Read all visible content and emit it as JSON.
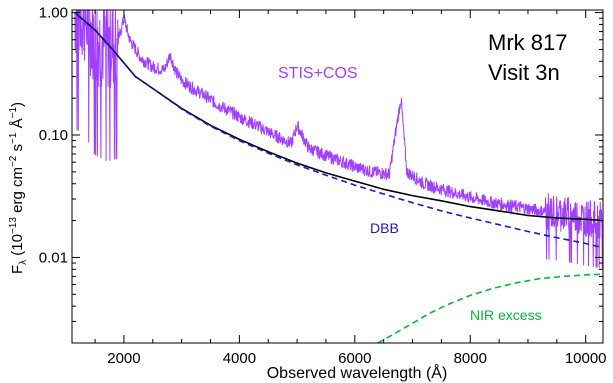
{
  "chart_data": {
    "type": "line",
    "title_lines": [
      "Mrk 817",
      "Visit 3n"
    ],
    "xlabel": "Observed wavelength (Å)",
    "ylabel": "F",
    "ylabel_sub": "λ",
    "ylabel_rest": " (10",
    "ylabel_exp1": "−13",
    "ylabel_rest2": " erg cm",
    "ylabel_exp2": "−2",
    "ylabel_rest3": " s",
    "ylabel_exp3": "−1",
    "ylabel_rest4": " Å",
    "ylabel_exp4": "−1",
    "ylabel_close": ")",
    "xlim": [
      1100,
      10300
    ],
    "ylim": [
      0.002,
      1.05
    ],
    "yscale": "log",
    "xticks": [
      2000,
      4000,
      6000,
      8000,
      10000
    ],
    "xtick_labels": [
      "2000",
      "4000",
      "6000",
      "8000",
      "10000"
    ],
    "yticks": [
      1.0,
      0.1,
      0.01
    ],
    "ytick_labels": [
      "1.00",
      "0.10",
      "0.01"
    ],
    "series": [
      {
        "name": "STIS+COS",
        "color": "#a040ff",
        "style": "solid-noisy",
        "x": [
          1150,
          1300,
          1500,
          1700,
          1900,
          2000,
          2100,
          2300,
          2500,
          2700,
          2800,
          2900,
          3000,
          3200,
          3400,
          3600,
          3800,
          4000,
          4300,
          4600,
          4900,
          5000,
          5200,
          5500,
          5800,
          6000,
          6300,
          6600,
          6700,
          6800,
          6900,
          7200,
          7600,
          8000,
          8400,
          8800,
          9200,
          9600,
          10000,
          10300
        ],
        "y": [
          1.0,
          0.95,
          0.62,
          0.55,
          0.58,
          0.9,
          0.6,
          0.42,
          0.36,
          0.34,
          0.45,
          0.33,
          0.28,
          0.24,
          0.21,
          0.18,
          0.16,
          0.14,
          0.12,
          0.1,
          0.085,
          0.12,
          0.078,
          0.068,
          0.06,
          0.055,
          0.05,
          0.048,
          0.1,
          0.2,
          0.05,
          0.04,
          0.035,
          0.031,
          0.028,
          0.026,
          0.024,
          0.023,
          0.021,
          0.02
        ]
      },
      {
        "name": "",
        "color": "#000000",
        "style": "solid",
        "x": [
          1150,
          1500,
          1800,
          2200,
          2500,
          3000,
          3500,
          4000,
          4500,
          5000,
          5500,
          6000,
          6500,
          7000,
          7500,
          8000,
          8500,
          9000,
          9500,
          10000,
          10300
        ],
        "y": [
          1.0,
          0.72,
          0.5,
          0.3,
          0.24,
          0.165,
          0.12,
          0.092,
          0.073,
          0.059,
          0.049,
          0.042,
          0.036,
          0.032,
          0.029,
          0.026,
          0.024,
          0.022,
          0.021,
          0.0205,
          0.02
        ]
      },
      {
        "name": "DBB",
        "color": "#1a1acc",
        "style": "dashed",
        "x": [
          1150,
          1500,
          1800,
          2200,
          2500,
          3000,
          3500,
          4000,
          4500,
          5000,
          5500,
          6000,
          6500,
          7000,
          7500,
          8000,
          8500,
          9000,
          9500,
          10000,
          10300
        ],
        "y": [
          1.0,
          0.72,
          0.5,
          0.3,
          0.24,
          0.163,
          0.118,
          0.09,
          0.071,
          0.057,
          0.047,
          0.039,
          0.033,
          0.028,
          0.024,
          0.021,
          0.0185,
          0.0163,
          0.0145,
          0.013,
          0.012
        ]
      },
      {
        "name": "NIR excess",
        "color": "#00bb33",
        "style": "dashed",
        "x": [
          6400,
          6700,
          7000,
          7300,
          7600,
          8000,
          8400,
          8800,
          9200,
          9600,
          10000,
          10300
        ],
        "y": [
          0.002,
          0.0024,
          0.0029,
          0.0035,
          0.0041,
          0.0049,
          0.0056,
          0.0062,
          0.0067,
          0.007,
          0.0072,
          0.0073
        ]
      }
    ],
    "annotations": [
      {
        "text": "STIS+COS",
        "color": "#a040ff"
      },
      {
        "text": "DBB",
        "color": "#1a1acc"
      },
      {
        "text": "NIR excess",
        "color": "#00bb33"
      }
    ]
  }
}
